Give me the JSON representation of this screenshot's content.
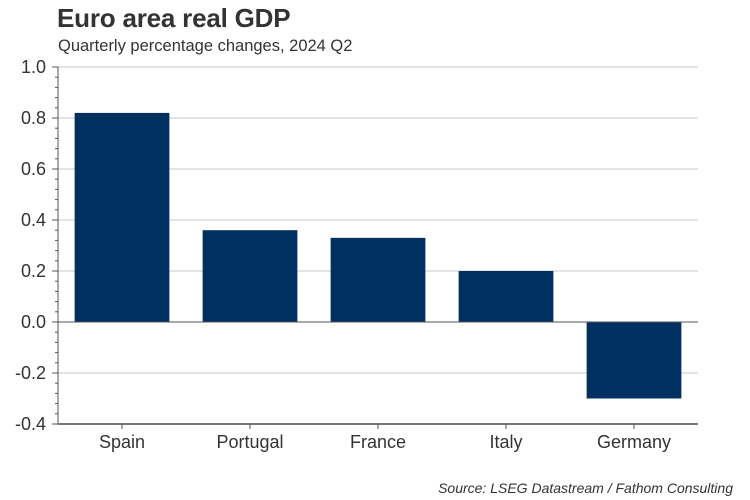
{
  "chart_data": {
    "type": "bar",
    "title": "Euro area real GDP",
    "subtitle": "Quarterly percentage changes, 2024 Q2",
    "categories": [
      "Spain",
      "Portugal",
      "France",
      "Italy",
      "Germany"
    ],
    "values": [
      0.82,
      0.36,
      0.33,
      0.2,
      -0.3
    ],
    "xlabel": "",
    "ylabel": "",
    "ylim": [
      -0.4,
      1.0
    ],
    "yticks": [
      1.0,
      0.8,
      0.6,
      0.4,
      0.2,
      0.0,
      -0.2,
      -0.4
    ],
    "ytick_labels": [
      "1.0",
      "0.8",
      "0.6",
      "0.4",
      "0.2",
      "0.0",
      "-0.2",
      "-0.4"
    ],
    "grid": true,
    "legend": "none",
    "bar_color": "#003060",
    "source": "Source: LSEG Datastream / Fathom Consulting"
  }
}
